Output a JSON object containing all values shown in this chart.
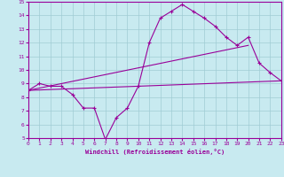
{
  "xlabel": "Windchill (Refroidissement éolien,°C)",
  "xlim": [
    0,
    23
  ],
  "ylim": [
    5,
    15
  ],
  "xticks": [
    0,
    1,
    2,
    3,
    4,
    5,
    6,
    7,
    8,
    9,
    10,
    11,
    12,
    13,
    14,
    15,
    16,
    17,
    18,
    19,
    20,
    21,
    22,
    23
  ],
  "yticks": [
    5,
    6,
    7,
    8,
    9,
    10,
    11,
    12,
    13,
    14,
    15
  ],
  "bg_color": "#c8eaf0",
  "line_color": "#990099",
  "grid_color": "#a0ccd4",
  "line1_x": [
    0,
    1,
    2,
    3,
    4,
    5,
    6,
    7,
    8,
    9,
    10,
    11,
    12,
    13,
    14,
    15,
    16,
    17,
    18,
    19,
    20,
    21,
    22,
    23
  ],
  "line1_y": [
    8.5,
    9.0,
    8.8,
    8.8,
    8.2,
    7.2,
    7.2,
    4.9,
    6.5,
    7.2,
    8.8,
    12.0,
    13.8,
    14.3,
    14.8,
    14.3,
    13.8,
    13.2,
    12.4,
    11.8,
    12.4,
    10.5,
    9.8,
    9.2
  ],
  "line2_x": [
    0,
    23
  ],
  "line2_y": [
    8.5,
    9.2
  ],
  "line3_x": [
    0,
    20
  ],
  "line3_y": [
    8.5,
    11.8
  ]
}
